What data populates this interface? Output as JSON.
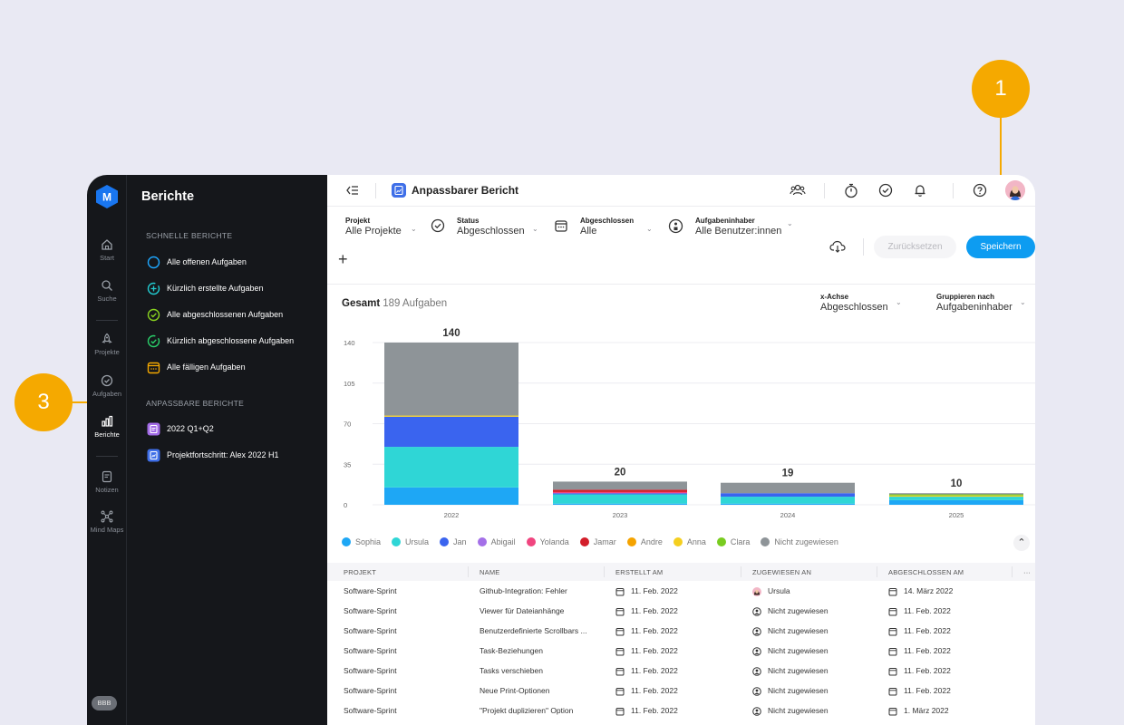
{
  "rail": {
    "logo_letter": "M",
    "items": [
      {
        "label": "Start",
        "icon": "home-icon"
      },
      {
        "label": "Suche",
        "icon": "search-icon"
      },
      {
        "label": "Projekte",
        "icon": "rocket-icon"
      },
      {
        "label": "Aufgaben",
        "icon": "check-circle-icon"
      },
      {
        "label": "Berichte",
        "icon": "bar-chart-icon"
      },
      {
        "label": "Notizen",
        "icon": "note-icon"
      },
      {
        "label": "Mind Maps",
        "icon": "mindmap-icon"
      }
    ],
    "user_badge": "BBB"
  },
  "sidebar": {
    "title": "Berichte",
    "quick_title": "SCHNELLE BERICHTE",
    "quick": [
      {
        "label": "Alle offenen Aufgaben",
        "color": "#1ea7ff"
      },
      {
        "label": "Kürzlich erstellte Aufgaben",
        "color": "#22cbd0"
      },
      {
        "label": "Alle abgeschlossenen Aufgaben",
        "color": "#8ad420"
      },
      {
        "label": "Kürzlich abgeschlossene Aufgaben",
        "color": "#2ad06a"
      },
      {
        "label": "Alle fälligen Aufgaben",
        "color": "#f5a900"
      }
    ],
    "custom_title": "ANPASSBARE BERICHTE",
    "custom": [
      {
        "label": "2022 Q1+Q2",
        "color": "#a26be6"
      },
      {
        "label": "Projektfortschritt: Alex 2022 H1",
        "color": "#3f6fe8"
      }
    ]
  },
  "topbar": {
    "title": "Anpassbarer Bericht"
  },
  "filters": {
    "project": {
      "label": "Projekt",
      "value": "Alle Projekte"
    },
    "status": {
      "label": "Status",
      "value": "Abgeschlossen"
    },
    "completed": {
      "label": "Abgeschlossen",
      "value": "Alle"
    },
    "assignee": {
      "label": "Aufgabeninhaber",
      "value": "Alle Benutzer:innen"
    },
    "reset_label": "Zurücksetzen",
    "save_label": "Speichern",
    "add": "+"
  },
  "summary": {
    "label": "Gesamt",
    "count": "189 Aufgaben"
  },
  "xaxis": {
    "label": "x-Achse",
    "value": "Abgeschlossen"
  },
  "groupby": {
    "label": "Gruppieren nach",
    "value": "Aufgabeninhaber"
  },
  "chart_data": {
    "type": "bar",
    "stacked": true,
    "categories": [
      "2022",
      "2023",
      "2024",
      "2025"
    ],
    "totals": [
      140,
      20,
      19,
      10
    ],
    "y_ticks": [
      0,
      35,
      70,
      105,
      140
    ],
    "ylim": [
      0,
      140
    ],
    "series": [
      {
        "name": "Sophia",
        "color": "#1ea7f5",
        "values": [
          15,
          1,
          1,
          4
        ]
      },
      {
        "name": "Ursula",
        "color": "#2fd6d6",
        "values": [
          35,
          8,
          6,
          3
        ]
      },
      {
        "name": "Jan",
        "color": "#3a64ef",
        "values": [
          26,
          1,
          3,
          0
        ]
      },
      {
        "name": "Abigail",
        "color": "#a470e8",
        "values": [
          0,
          0,
          0,
          0
        ]
      },
      {
        "name": "Yolanda",
        "color": "#f0457f",
        "values": [
          0,
          1,
          0,
          0
        ]
      },
      {
        "name": "Jamar",
        "color": "#d31e2a",
        "values": [
          0,
          2,
          0,
          0
        ]
      },
      {
        "name": "Andre",
        "color": "#f5a300",
        "values": [
          0,
          0,
          0,
          0
        ]
      },
      {
        "name": "Anna",
        "color": "#f5cf1f",
        "values": [
          1,
          0,
          0,
          1
        ]
      },
      {
        "name": "Clara",
        "color": "#79cc20",
        "values": [
          0,
          0,
          0,
          1
        ]
      },
      {
        "name": "Nicht zugewiesen",
        "color": "#8e9498",
        "values": [
          63,
          7,
          9,
          1
        ]
      }
    ]
  },
  "table": {
    "headers": [
      "PROJEKT",
      "NAME",
      "ERSTELLT AM",
      "ZUGEWIESEN AN",
      "ABGESCHLOSSEN AM",
      "···"
    ],
    "rows": [
      [
        "Software-Sprint",
        "Github-Integration: Fehler",
        "11. Feb. 2022",
        "Ursula",
        "14. März 2022"
      ],
      [
        "Software-Sprint",
        "Viewer für Dateianhänge",
        "11. Feb. 2022",
        "Nicht zugewiesen",
        "11. Feb. 2022"
      ],
      [
        "Software-Sprint",
        "Benutzerdefinierte Scrollbars ...",
        "11. Feb. 2022",
        "Nicht zugewiesen",
        "11. Feb. 2022"
      ],
      [
        "Software-Sprint",
        "Task-Beziehungen",
        "11. Feb. 2022",
        "Nicht zugewiesen",
        "11. Feb. 2022"
      ],
      [
        "Software-Sprint",
        "Tasks verschieben",
        "11. Feb. 2022",
        "Nicht zugewiesen",
        "11. Feb. 2022"
      ],
      [
        "Software-Sprint",
        "Neue Print-Optionen",
        "11. Feb. 2022",
        "Nicht zugewiesen",
        "11. Feb. 2022"
      ],
      [
        "Software-Sprint",
        "\"Projekt duplizieren\" Option",
        "11. Feb. 2022",
        "Nicht zugewiesen",
        "1. März 2022"
      ]
    ]
  },
  "callouts": {
    "save_number": "1",
    "custom_number": "3",
    "color": "#f5a900"
  }
}
